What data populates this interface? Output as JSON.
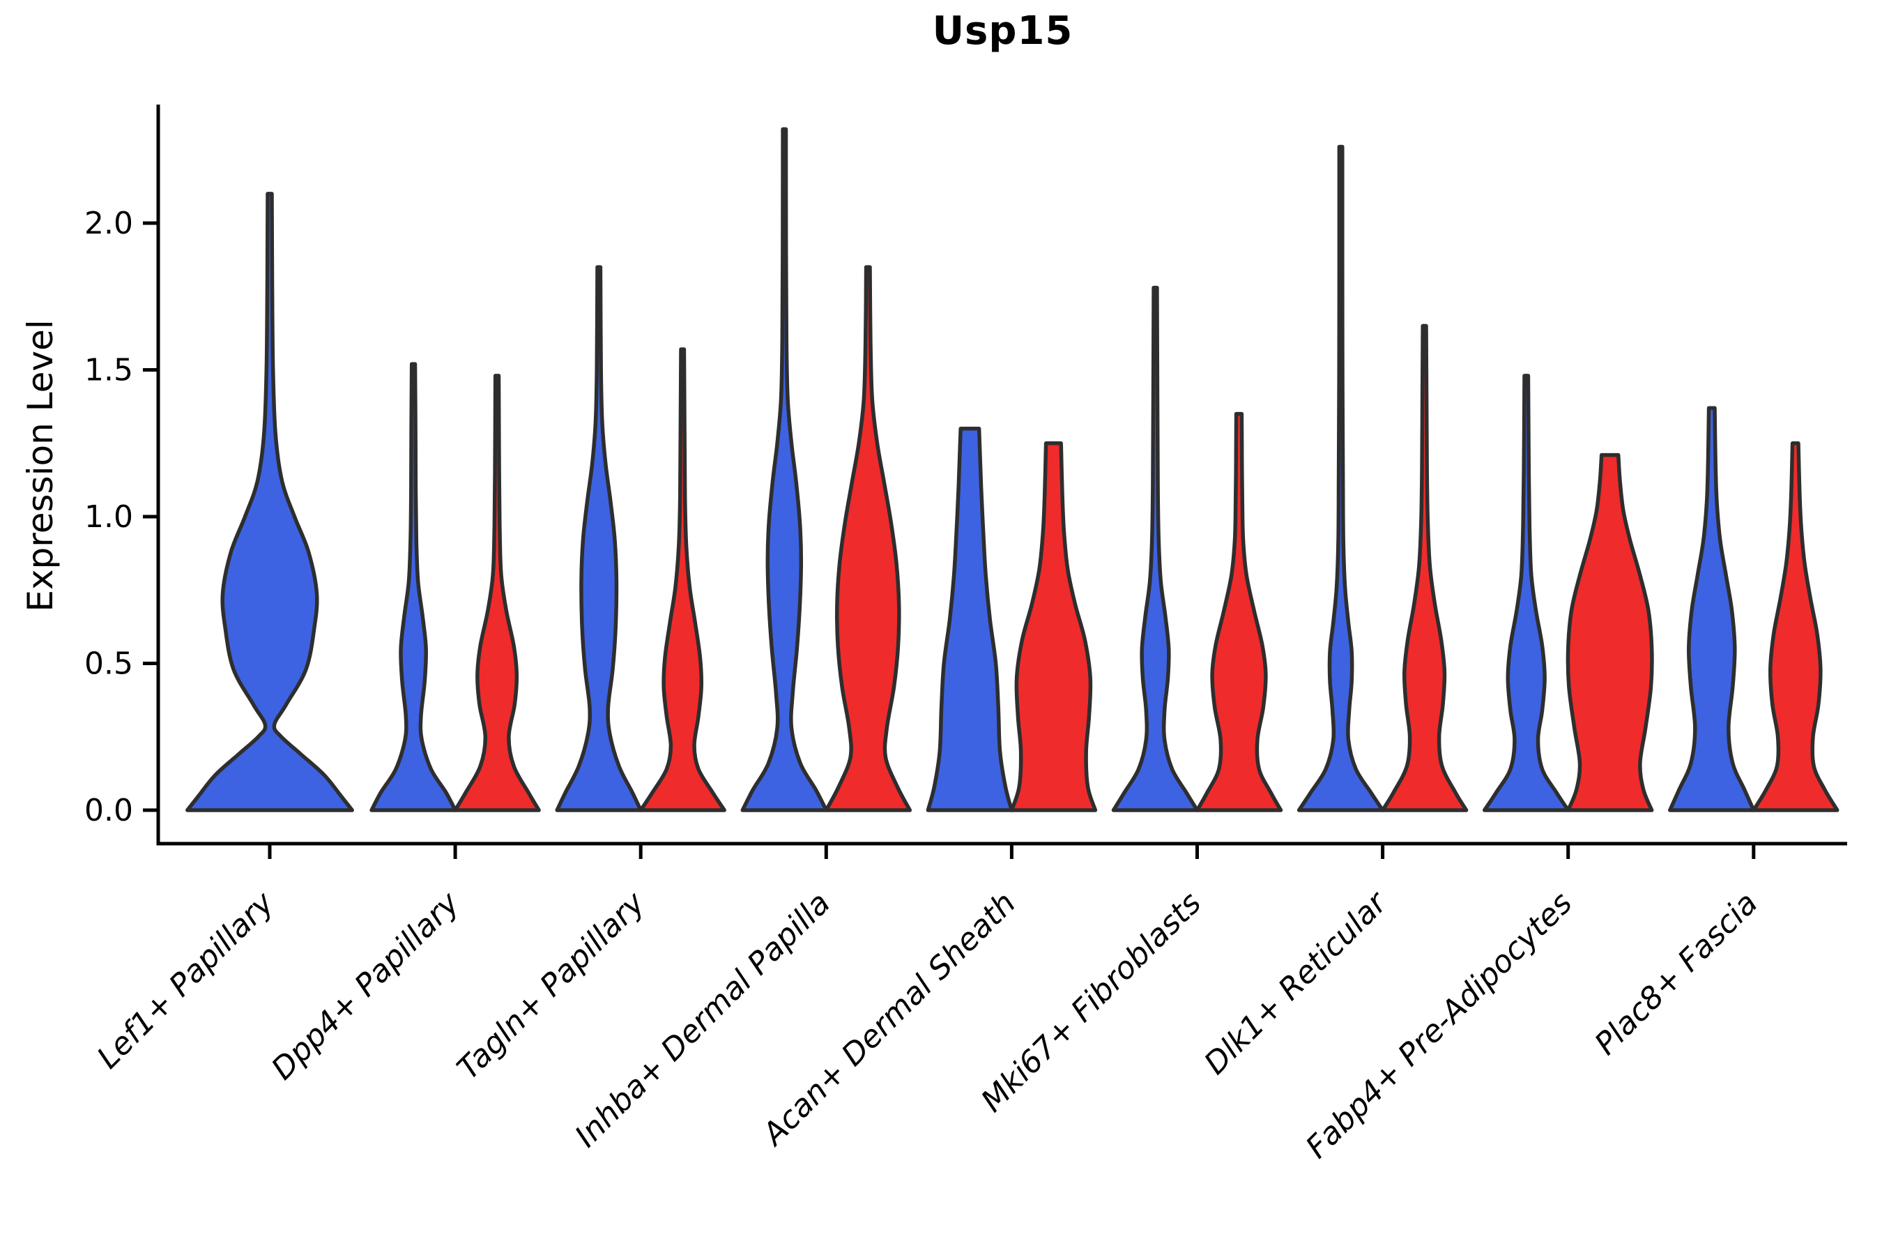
{
  "chart_data": {
    "type": "violin",
    "title": "Usp15",
    "ylabel": "Expression Level",
    "xlabel": "",
    "ylim": [
      0,
      2.4
    ],
    "grid": false,
    "legend": "none",
    "y_axis": {
      "ticks": [
        "0.0",
        "0.5",
        "1.0",
        "1.5",
        "2.0"
      ],
      "tick_values": [
        0,
        0.5,
        1.0,
        1.5,
        2.0
      ]
    },
    "categories": [
      "Lef1+ Papillary",
      "Dpp4+ Papillary",
      "Tagln+ Papillary",
      "Inhba+ Dermal Papilla",
      "Acan+ Dermal Sheath",
      "Mki67+ Fibroblasts",
      "Dlk1+ Reticular",
      "Fabp4+ Pre-Adipocytes",
      "Plac8+ Fascia"
    ],
    "colors": {
      "blue": "#3D63E2",
      "red": "#F02B2B",
      "outline": "#2e2e2e",
      "axis": "#000000"
    },
    "violins": [
      {
        "category_index": 0,
        "side": "full",
        "color": "blue",
        "max_value": 2.1,
        "width_scale": 1.97,
        "profile": [
          [
            0,
            1.0
          ],
          [
            0.05,
            0.86
          ],
          [
            0.12,
            0.66
          ],
          [
            0.19,
            0.38
          ],
          [
            0.25,
            0.14
          ],
          [
            0.29,
            0.055
          ],
          [
            0.36,
            0.2
          ],
          [
            0.48,
            0.44
          ],
          [
            0.62,
            0.54
          ],
          [
            0.74,
            0.57
          ],
          [
            0.88,
            0.47
          ],
          [
            1.0,
            0.3
          ],
          [
            1.12,
            0.15
          ],
          [
            1.28,
            0.07
          ],
          [
            1.5,
            0.04
          ],
          [
            1.8,
            0.03
          ],
          [
            2.1,
            0.025
          ]
        ]
      },
      {
        "category_index": 1,
        "side": "left",
        "color": "blue",
        "max_value": 1.52,
        "width_scale": 1.0,
        "profile": [
          [
            0,
            1.0
          ],
          [
            0.06,
            0.78
          ],
          [
            0.14,
            0.42
          ],
          [
            0.24,
            0.2
          ],
          [
            0.32,
            0.18
          ],
          [
            0.44,
            0.27
          ],
          [
            0.55,
            0.3
          ],
          [
            0.66,
            0.22
          ],
          [
            0.78,
            0.11
          ],
          [
            0.92,
            0.07
          ],
          [
            1.1,
            0.055
          ],
          [
            1.3,
            0.05
          ],
          [
            1.52,
            0.04
          ]
        ]
      },
      {
        "category_index": 1,
        "side": "right",
        "color": "red",
        "max_value": 1.48,
        "width_scale": 1.0,
        "profile": [
          [
            0,
            1.0
          ],
          [
            0.06,
            0.75
          ],
          [
            0.15,
            0.4
          ],
          [
            0.25,
            0.28
          ],
          [
            0.36,
            0.42
          ],
          [
            0.46,
            0.47
          ],
          [
            0.56,
            0.4
          ],
          [
            0.68,
            0.22
          ],
          [
            0.8,
            0.1
          ],
          [
            0.95,
            0.065
          ],
          [
            1.15,
            0.05
          ],
          [
            1.48,
            0.04
          ]
        ]
      },
      {
        "category_index": 2,
        "side": "left",
        "color": "blue",
        "max_value": 1.85,
        "width_scale": 1.0,
        "profile": [
          [
            0,
            1.0
          ],
          [
            0.06,
            0.8
          ],
          [
            0.15,
            0.48
          ],
          [
            0.26,
            0.26
          ],
          [
            0.35,
            0.22
          ],
          [
            0.48,
            0.33
          ],
          [
            0.62,
            0.4
          ],
          [
            0.78,
            0.42
          ],
          [
            0.92,
            0.38
          ],
          [
            1.05,
            0.28
          ],
          [
            1.18,
            0.16
          ],
          [
            1.32,
            0.08
          ],
          [
            1.5,
            0.05
          ],
          [
            1.85,
            0.035
          ]
        ]
      },
      {
        "category_index": 2,
        "side": "right",
        "color": "red",
        "max_value": 1.57,
        "width_scale": 1.0,
        "profile": [
          [
            0,
            1.0
          ],
          [
            0.06,
            0.72
          ],
          [
            0.14,
            0.38
          ],
          [
            0.22,
            0.28
          ],
          [
            0.32,
            0.38
          ],
          [
            0.42,
            0.45
          ],
          [
            0.52,
            0.42
          ],
          [
            0.64,
            0.3
          ],
          [
            0.76,
            0.17
          ],
          [
            0.9,
            0.09
          ],
          [
            1.05,
            0.06
          ],
          [
            1.25,
            0.05
          ],
          [
            1.57,
            0.035
          ]
        ]
      },
      {
        "category_index": 3,
        "side": "left",
        "color": "blue",
        "max_value": 2.32,
        "width_scale": 1.0,
        "profile": [
          [
            0,
            1.0
          ],
          [
            0.07,
            0.75
          ],
          [
            0.16,
            0.38
          ],
          [
            0.28,
            0.17
          ],
          [
            0.4,
            0.2
          ],
          [
            0.55,
            0.3
          ],
          [
            0.7,
            0.37
          ],
          [
            0.85,
            0.4
          ],
          [
            0.98,
            0.37
          ],
          [
            1.12,
            0.28
          ],
          [
            1.25,
            0.17
          ],
          [
            1.4,
            0.08
          ],
          [
            1.6,
            0.05
          ],
          [
            1.9,
            0.04
          ],
          [
            2.32,
            0.03
          ]
        ]
      },
      {
        "category_index": 3,
        "side": "right",
        "color": "red",
        "max_value": 1.85,
        "width_scale": 1.0,
        "profile": [
          [
            0,
            1.0
          ],
          [
            0.08,
            0.7
          ],
          [
            0.18,
            0.42
          ],
          [
            0.28,
            0.45
          ],
          [
            0.42,
            0.62
          ],
          [
            0.56,
            0.72
          ],
          [
            0.7,
            0.74
          ],
          [
            0.84,
            0.68
          ],
          [
            0.98,
            0.55
          ],
          [
            1.12,
            0.38
          ],
          [
            1.25,
            0.22
          ],
          [
            1.4,
            0.1
          ],
          [
            1.6,
            0.06
          ],
          [
            1.85,
            0.045
          ]
        ]
      },
      {
        "category_index": 4,
        "side": "left",
        "color": "blue",
        "max_value": 1.3,
        "width_scale": 1.0,
        "profile": [
          [
            0,
            1.0
          ],
          [
            0.08,
            0.85
          ],
          [
            0.2,
            0.72
          ],
          [
            0.35,
            0.68
          ],
          [
            0.5,
            0.62
          ],
          [
            0.65,
            0.48
          ],
          [
            0.8,
            0.38
          ],
          [
            0.95,
            0.32
          ],
          [
            1.1,
            0.27
          ],
          [
            1.22,
            0.24
          ],
          [
            1.3,
            0.22
          ]
        ]
      },
      {
        "category_index": 4,
        "side": "right",
        "color": "red",
        "max_value": 1.25,
        "width_scale": 1.0,
        "profile": [
          [
            0,
            1.0
          ],
          [
            0.08,
            0.82
          ],
          [
            0.2,
            0.78
          ],
          [
            0.32,
            0.85
          ],
          [
            0.45,
            0.88
          ],
          [
            0.58,
            0.75
          ],
          [
            0.7,
            0.52
          ],
          [
            0.82,
            0.34
          ],
          [
            0.95,
            0.25
          ],
          [
            1.08,
            0.21
          ],
          [
            1.25,
            0.18
          ]
        ]
      },
      {
        "category_index": 5,
        "side": "left",
        "color": "blue",
        "max_value": 1.78,
        "width_scale": 1.0,
        "profile": [
          [
            0,
            1.0
          ],
          [
            0.06,
            0.74
          ],
          [
            0.14,
            0.4
          ],
          [
            0.24,
            0.22
          ],
          [
            0.34,
            0.22
          ],
          [
            0.45,
            0.3
          ],
          [
            0.55,
            0.32
          ],
          [
            0.66,
            0.24
          ],
          [
            0.78,
            0.13
          ],
          [
            0.92,
            0.08
          ],
          [
            1.1,
            0.06
          ],
          [
            1.4,
            0.05
          ],
          [
            1.78,
            0.04
          ]
        ]
      },
      {
        "category_index": 5,
        "side": "right",
        "color": "red",
        "max_value": 1.35,
        "width_scale": 1.0,
        "profile": [
          [
            0,
            1.0
          ],
          [
            0.06,
            0.76
          ],
          [
            0.14,
            0.48
          ],
          [
            0.24,
            0.44
          ],
          [
            0.35,
            0.58
          ],
          [
            0.46,
            0.64
          ],
          [
            0.56,
            0.56
          ],
          [
            0.68,
            0.36
          ],
          [
            0.8,
            0.18
          ],
          [
            0.92,
            0.1
          ],
          [
            1.05,
            0.08
          ],
          [
            1.2,
            0.07
          ],
          [
            1.35,
            0.065
          ]
        ]
      },
      {
        "category_index": 6,
        "side": "left",
        "color": "blue",
        "max_value": 2.26,
        "width_scale": 1.0,
        "profile": [
          [
            0,
            1.0
          ],
          [
            0.06,
            0.72
          ],
          [
            0.14,
            0.36
          ],
          [
            0.24,
            0.18
          ],
          [
            0.34,
            0.2
          ],
          [
            0.44,
            0.26
          ],
          [
            0.54,
            0.26
          ],
          [
            0.64,
            0.18
          ],
          [
            0.76,
            0.1
          ],
          [
            0.92,
            0.06
          ],
          [
            1.15,
            0.05
          ],
          [
            1.5,
            0.04
          ],
          [
            1.9,
            0.035
          ],
          [
            2.26,
            0.03
          ]
        ]
      },
      {
        "category_index": 6,
        "side": "right",
        "color": "red",
        "max_value": 1.65,
        "width_scale": 1.0,
        "profile": [
          [
            0,
            1.0
          ],
          [
            0.06,
            0.74
          ],
          [
            0.15,
            0.42
          ],
          [
            0.25,
            0.35
          ],
          [
            0.36,
            0.44
          ],
          [
            0.47,
            0.48
          ],
          [
            0.58,
            0.4
          ],
          [
            0.7,
            0.25
          ],
          [
            0.83,
            0.13
          ],
          [
            0.98,
            0.08
          ],
          [
            1.15,
            0.06
          ],
          [
            1.4,
            0.05
          ],
          [
            1.65,
            0.04
          ]
        ]
      },
      {
        "category_index": 7,
        "side": "left",
        "color": "blue",
        "max_value": 1.48,
        "width_scale": 1.0,
        "profile": [
          [
            0,
            1.0
          ],
          [
            0.06,
            0.72
          ],
          [
            0.14,
            0.38
          ],
          [
            0.24,
            0.28
          ],
          [
            0.34,
            0.38
          ],
          [
            0.45,
            0.44
          ],
          [
            0.56,
            0.38
          ],
          [
            0.68,
            0.23
          ],
          [
            0.8,
            0.12
          ],
          [
            0.95,
            0.08
          ],
          [
            1.15,
            0.06
          ],
          [
            1.48,
            0.045
          ]
        ]
      },
      {
        "category_index": 7,
        "side": "right",
        "color": "red",
        "max_value": 1.21,
        "width_scale": 1.0,
        "profile": [
          [
            0,
            1.0
          ],
          [
            0.07,
            0.8
          ],
          [
            0.16,
            0.72
          ],
          [
            0.28,
            0.85
          ],
          [
            0.42,
            0.98
          ],
          [
            0.55,
            1.0
          ],
          [
            0.68,
            0.92
          ],
          [
            0.8,
            0.72
          ],
          [
            0.92,
            0.48
          ],
          [
            1.02,
            0.32
          ],
          [
            1.12,
            0.24
          ],
          [
            1.21,
            0.2
          ]
        ]
      },
      {
        "category_index": 8,
        "side": "left",
        "color": "blue",
        "max_value": 1.37,
        "width_scale": 1.0,
        "profile": [
          [
            0,
            1.0
          ],
          [
            0.07,
            0.78
          ],
          [
            0.16,
            0.5
          ],
          [
            0.28,
            0.4
          ],
          [
            0.42,
            0.5
          ],
          [
            0.55,
            0.55
          ],
          [
            0.68,
            0.48
          ],
          [
            0.8,
            0.34
          ],
          [
            0.92,
            0.2
          ],
          [
            1.05,
            0.12
          ],
          [
            1.18,
            0.09
          ],
          [
            1.37,
            0.07
          ]
        ]
      },
      {
        "category_index": 8,
        "side": "right",
        "color": "red",
        "max_value": 1.25,
        "width_scale": 1.0,
        "profile": [
          [
            0,
            1.0
          ],
          [
            0.07,
            0.7
          ],
          [
            0.15,
            0.44
          ],
          [
            0.25,
            0.42
          ],
          [
            0.36,
            0.55
          ],
          [
            0.48,
            0.6
          ],
          [
            0.6,
            0.52
          ],
          [
            0.72,
            0.36
          ],
          [
            0.84,
            0.22
          ],
          [
            0.96,
            0.14
          ],
          [
            1.08,
            0.1
          ],
          [
            1.25,
            0.07
          ]
        ]
      }
    ]
  }
}
